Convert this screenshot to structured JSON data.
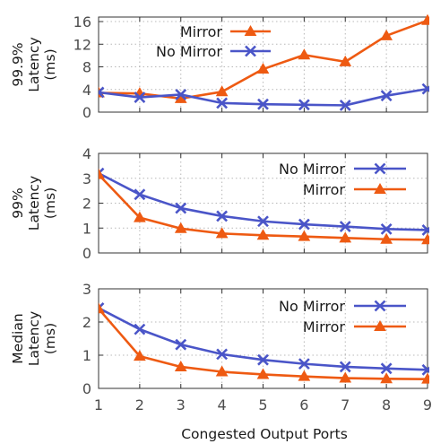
{
  "colors": {
    "mirror": "#ee5a12",
    "no_mirror": "#4a55c8"
  },
  "figure": {
    "xlabel": "Congested Output Ports"
  },
  "chart_data": [
    {
      "type": "line",
      "ylabel_lines": [
        "99.9%",
        "Latency",
        "(ms)"
      ],
      "x": [
        1,
        2,
        3,
        4,
        5,
        6,
        7,
        8,
        9
      ],
      "xlim": [
        1,
        9
      ],
      "ylim": [
        0,
        16.8
      ],
      "yticks": [
        0,
        4,
        8,
        12,
        16
      ],
      "legend_position": "top-left",
      "legend_order": [
        "Mirror",
        "No Mirror"
      ],
      "series": [
        {
          "name": "Mirror",
          "marker": "triangle",
          "color_key": "mirror",
          "values": [
            3.4,
            3.3,
            2.4,
            3.6,
            7.6,
            10.1,
            8.9,
            13.5,
            16.2
          ]
        },
        {
          "name": "No Mirror",
          "marker": "x",
          "color_key": "no_mirror",
          "values": [
            3.5,
            2.6,
            3.1,
            1.6,
            1.4,
            1.3,
            1.2,
            2.9,
            4.1
          ]
        }
      ]
    },
    {
      "type": "line",
      "ylabel_lines": [
        "99%",
        "Latency",
        "(ms)"
      ],
      "x": [
        1,
        2,
        3,
        4,
        5,
        6,
        7,
        8,
        9
      ],
      "xlim": [
        1,
        9
      ],
      "ylim": [
        0,
        4
      ],
      "yticks": [
        0,
        1,
        2,
        3,
        4
      ],
      "legend_position": "top-right",
      "legend_order": [
        "No Mirror",
        "Mirror"
      ],
      "series": [
        {
          "name": "No Mirror",
          "marker": "x",
          "color_key": "no_mirror",
          "values": [
            3.2,
            2.35,
            1.8,
            1.48,
            1.27,
            1.15,
            1.06,
            0.96,
            0.92
          ]
        },
        {
          "name": "Mirror",
          "marker": "triangle",
          "color_key": "mirror",
          "values": [
            3.15,
            1.42,
            0.98,
            0.78,
            0.71,
            0.66,
            0.6,
            0.55,
            0.53
          ]
        }
      ]
    },
    {
      "type": "line",
      "ylabel_lines": [
        "Median",
        "Latency",
        "(ms)"
      ],
      "x": [
        1,
        2,
        3,
        4,
        5,
        6,
        7,
        8,
        9
      ],
      "xlim": [
        1,
        9
      ],
      "ylim": [
        0,
        3
      ],
      "yticks": [
        0,
        1,
        2,
        3
      ],
      "legend_position": "top-right",
      "legend_order": [
        "No Mirror",
        "Mirror"
      ],
      "series": [
        {
          "name": "No Mirror",
          "marker": "x",
          "color_key": "no_mirror",
          "values": [
            2.42,
            1.78,
            1.32,
            1.03,
            0.86,
            0.74,
            0.65,
            0.6,
            0.56
          ]
        },
        {
          "name": "Mirror",
          "marker": "triangle",
          "color_key": "mirror",
          "values": [
            2.4,
            0.97,
            0.65,
            0.5,
            0.42,
            0.36,
            0.31,
            0.29,
            0.28
          ]
        }
      ]
    }
  ]
}
